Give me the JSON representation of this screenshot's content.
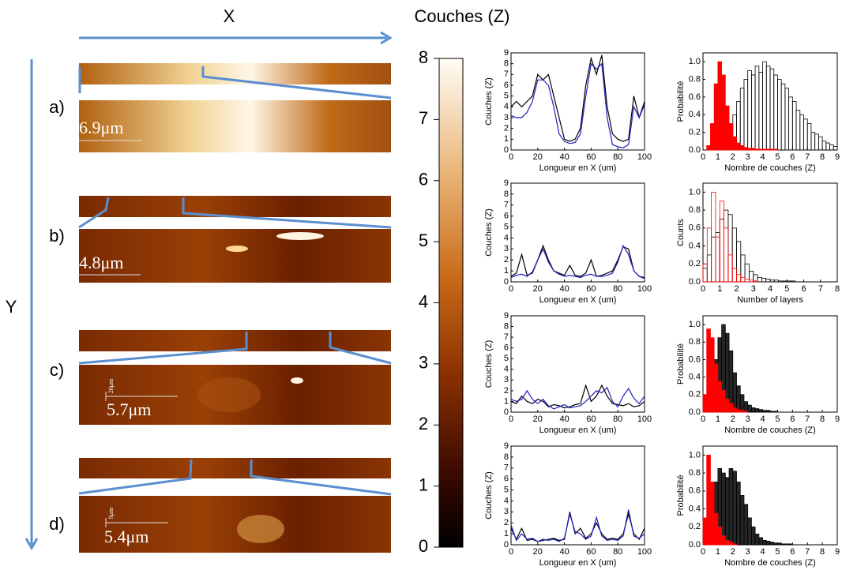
{
  "labels": {
    "x_axis": "X",
    "y_axis": "Y"
  },
  "panels": [
    {
      "label": "a)",
      "scale": "6.9μm"
    },
    {
      "label": "b)",
      "scale": "4.8μm"
    },
    {
      "label": "c)",
      "scale": "5.7μm",
      "scale_small": "20μm"
    },
    {
      "label": "d)",
      "scale": "5.4μm",
      "scale_small": "9μm"
    }
  ],
  "chart_data": [
    {
      "type": "colorbar",
      "title": "Couches (Z)",
      "ylim": [
        0,
        8
      ],
      "yticks": [
        0,
        1,
        2,
        3,
        4,
        5,
        6,
        7,
        8
      ]
    },
    {
      "type": "line",
      "xlabel": "Longueur en X (um)",
      "ylabel": "Couches (Z)",
      "x": [
        0,
        4,
        8,
        12,
        16,
        20,
        24,
        28,
        32,
        36,
        40,
        44,
        48,
        52,
        56,
        60,
        64,
        68,
        72,
        76,
        80,
        84,
        88,
        92,
        96,
        100
      ],
      "series": [
        {
          "color": "#000000",
          "values": [
            4,
            4.5,
            4,
            4.5,
            5,
            7,
            6.5,
            7,
            5,
            3,
            1,
            0.8,
            1,
            2,
            6,
            8.5,
            7,
            8.8,
            4,
            1.5,
            1,
            0.8,
            1,
            5,
            3,
            4.5
          ]
        },
        {
          "color": "#1f1fbf",
          "values": [
            3.2,
            3,
            3,
            3.5,
            4.5,
            6.5,
            6.5,
            6,
            4,
            1.5,
            0.8,
            0.6,
            0.7,
            1.5,
            5,
            8,
            7.5,
            8,
            3,
            0.5,
            0.3,
            0.2,
            0.5,
            4,
            3,
            4.2
          ]
        }
      ],
      "xlim": [
        0,
        100
      ],
      "xticks": [
        0,
        20,
        40,
        60,
        80,
        100
      ],
      "ylim": [
        0,
        9
      ],
      "yticks": [
        0,
        1,
        2,
        3,
        4,
        5,
        6,
        7,
        8,
        9
      ]
    },
    {
      "type": "line",
      "xlabel": "Longueur en X (um)",
      "ylabel": "Couches (Z)",
      "x": [
        0,
        4,
        8,
        12,
        16,
        20,
        24,
        28,
        32,
        36,
        40,
        44,
        48,
        52,
        56,
        60,
        64,
        68,
        72,
        76,
        80,
        84,
        88,
        92,
        96,
        100
      ],
      "series": [
        {
          "color": "#000000",
          "values": [
            0.5,
            0.8,
            2.5,
            0.6,
            0.8,
            2,
            3.3,
            2,
            1,
            0.8,
            0.6,
            1.5,
            0.6,
            0.5,
            0.8,
            2,
            0.5,
            0.6,
            0.8,
            1,
            2,
            3.2,
            3,
            1,
            0.5,
            0.4
          ]
        },
        {
          "color": "#1f1fbf",
          "values": [
            0.4,
            0.6,
            0.7,
            0.5,
            0.9,
            2,
            3,
            1.8,
            1,
            0.7,
            0.5,
            0.6,
            0.5,
            0.4,
            0.6,
            0.7,
            0.5,
            0.5,
            0.6,
            0.8,
            1.8,
            3.3,
            2.5,
            1,
            0.5,
            0.3
          ]
        }
      ],
      "xlim": [
        0,
        100
      ],
      "xticks": [
        0,
        20,
        40,
        60,
        80,
        100
      ],
      "ylim": [
        0,
        9
      ],
      "yticks": [
        0,
        1,
        2,
        3,
        4,
        5,
        6,
        7,
        8,
        9
      ]
    },
    {
      "type": "line",
      "xlabel": "Longueur en X (um)",
      "ylabel": "Couches (Z)",
      "x": [
        0,
        4,
        8,
        12,
        16,
        20,
        24,
        28,
        32,
        36,
        40,
        44,
        48,
        52,
        56,
        60,
        64,
        68,
        72,
        76,
        80,
        84,
        88,
        92,
        96,
        100
      ],
      "series": [
        {
          "color": "#000000",
          "values": [
            1,
            0.8,
            1.5,
            1,
            0.8,
            1.2,
            1,
            0.5,
            0.7,
            0.6,
            0.4,
            0.5,
            0.7,
            0.8,
            2.5,
            1,
            1.5,
            2.5,
            1.5,
            0.8,
            0.7,
            0.6,
            0.8,
            0.5,
            0.6,
            1
          ]
        },
        {
          "color": "#1f1fbf",
          "values": [
            1.2,
            1,
            1.2,
            2,
            1.2,
            0.8,
            1.2,
            0.6,
            0.3,
            0.5,
            0.7,
            0.4,
            0.5,
            0.6,
            1,
            1.5,
            2,
            1.8,
            2.3,
            1,
            0.5,
            1.5,
            2.2,
            1.3,
            0.8,
            1.5
          ]
        }
      ],
      "xlim": [
        0,
        100
      ],
      "xticks": [
        0,
        20,
        40,
        60,
        80,
        100
      ],
      "ylim": [
        0,
        9
      ],
      "yticks": [
        0,
        1,
        2,
        3,
        4,
        5,
        6,
        7,
        8,
        9
      ]
    },
    {
      "type": "line",
      "xlabel": "Longueur en X (um)",
      "ylabel": "Couches (Z)",
      "x": [
        0,
        4,
        8,
        12,
        16,
        20,
        24,
        28,
        32,
        36,
        40,
        44,
        48,
        52,
        56,
        60,
        64,
        68,
        72,
        76,
        80,
        84,
        88,
        92,
        96,
        100
      ],
      "series": [
        {
          "color": "#000000",
          "values": [
            1.5,
            0.5,
            1.5,
            0.4,
            0.5,
            0.3,
            0.4,
            0.5,
            0.6,
            0.4,
            0.5,
            3,
            1,
            1.5,
            0.6,
            1,
            2,
            1,
            0.5,
            0.6,
            0.5,
            1,
            2.8,
            1,
            0.5,
            1.5
          ]
        },
        {
          "color": "#1f1fbf",
          "values": [
            1.8,
            0.4,
            1,
            0.5,
            0.6,
            0.3,
            0.5,
            0.4,
            0.5,
            0.3,
            0.6,
            2.8,
            1.2,
            1,
            0.5,
            0.8,
            2.5,
            0.8,
            0.4,
            0.5,
            0.4,
            0.8,
            3.2,
            0.8,
            0.6,
            1
          ]
        }
      ],
      "xlim": [
        0,
        100
      ],
      "xticks": [
        0,
        20,
        40,
        60,
        80,
        100
      ],
      "ylim": [
        0,
        9
      ],
      "yticks": [
        0,
        1,
        2,
        3,
        4,
        5,
        6,
        7,
        8,
        9
      ]
    },
    {
      "type": "histogram",
      "xlabel": "Nombre de couches (Z)",
      "ylabel": "Probabilité",
      "bins": [
        0,
        0.25,
        0.5,
        0.75,
        1,
        1.25,
        1.5,
        1.75,
        2,
        2.25,
        2.5,
        2.75,
        3,
        3.25,
        3.5,
        3.75,
        4,
        4.25,
        4.5,
        4.75,
        5,
        5.25,
        5.5,
        5.75,
        6,
        6.25,
        6.5,
        6.75,
        7,
        7.25,
        7.5,
        7.75,
        8,
        8.25,
        8.5,
        8.75,
        9
      ],
      "series": [
        {
          "color": "#000000",
          "filled": false,
          "values": [
            0,
            0,
            0.02,
            0.03,
            0.05,
            0.1,
            0.15,
            0.25,
            0.4,
            0.55,
            0.7,
            0.8,
            0.9,
            0.85,
            0.95,
            0.88,
            1.0,
            0.95,
            0.92,
            0.85,
            0.8,
            0.75,
            0.7,
            0.6,
            0.55,
            0.45,
            0.4,
            0.35,
            0.3,
            0.2,
            0.18,
            0.15,
            0.1,
            0.08,
            0.06,
            0.04
          ]
        },
        {
          "color": "#ff0000",
          "filled": true,
          "values": [
            0,
            0.05,
            0.3,
            0.75,
            1.0,
            0.85,
            0.5,
            0.3,
            0.15,
            0.08,
            0.05,
            0.03,
            0.02,
            0.02,
            0.01,
            0.01,
            0.01,
            0.01,
            0.01,
            0.01,
            0,
            0,
            0,
            0,
            0,
            0,
            0,
            0,
            0,
            0,
            0,
            0,
            0,
            0,
            0,
            0
          ]
        }
      ],
      "xlim": [
        0,
        9
      ],
      "xticks": [
        0,
        1,
        2,
        3,
        4,
        5,
        6,
        7,
        8,
        9
      ],
      "ylim": [
        0,
        1.1
      ],
      "yticks": [
        {
          "value": 0,
          "label": "0.0"
        },
        {
          "value": 0.2,
          "label": "0.2"
        },
        {
          "value": 0.4,
          "label": "0.4"
        },
        {
          "value": 0.6,
          "label": "0.6"
        },
        {
          "value": 0.8,
          "label": "0.8"
        },
        {
          "value": 1,
          "label": "1.0"
        }
      ]
    },
    {
      "type": "histogram",
      "xlabel": "Number of layers",
      "ylabel": "Counts",
      "bins": [
        0,
        0.25,
        0.5,
        0.75,
        1,
        1.25,
        1.5,
        1.75,
        2,
        2.25,
        2.5,
        2.75,
        3,
        3.25,
        3.5,
        3.75,
        4,
        4.25,
        4.5,
        4.75,
        5,
        5.25,
        5.5,
        5.75,
        6,
        6.25,
        6.5,
        6.75,
        7,
        7.25,
        7.5,
        7.75,
        8
      ],
      "series": [
        {
          "color": "#000000",
          "filled": false,
          "values": [
            0.15,
            0.3,
            0.5,
            0.55,
            0.7,
            0.8,
            0.75,
            0.6,
            0.45,
            0.3,
            0.2,
            0.12,
            0.08,
            0.05,
            0.04,
            0.03,
            0.02,
            0.02,
            0.01,
            0.01,
            0.01,
            0.01,
            0,
            0,
            0,
            0,
            0,
            0,
            0,
            0,
            0,
            0
          ]
        },
        {
          "color": "#ff0000",
          "filled": false,
          "values": [
            0.2,
            0.6,
            1.0,
            0.5,
            0.9,
            0.6,
            0.3,
            0.15,
            0.08,
            0.05,
            0.03,
            0.02,
            0.01,
            0,
            0,
            0,
            0,
            0,
            0,
            0,
            0,
            0,
            0,
            0,
            0,
            0,
            0,
            0,
            0,
            0,
            0,
            0
          ]
        }
      ],
      "xlim": [
        0,
        8
      ],
      "xticks": [
        0,
        1,
        2,
        3,
        4,
        5,
        6,
        7,
        8
      ],
      "ylim": [
        0,
        1.1
      ],
      "yticks": [
        {
          "value": 0,
          "label": "0.0"
        },
        {
          "value": 0.2,
          "label": "0.2"
        },
        {
          "value": 0.4,
          "label": "0.4"
        },
        {
          "value": 0.6,
          "label": "0.6"
        },
        {
          "value": 0.8,
          "label": "0.8"
        },
        {
          "value": 1,
          "label": "1.0"
        }
      ]
    },
    {
      "type": "histogram",
      "xlabel": "Nombre de couches (Z)",
      "ylabel": "Probabilité",
      "bins": [
        0,
        0.25,
        0.5,
        0.75,
        1,
        1.25,
        1.5,
        1.75,
        2,
        2.25,
        2.5,
        2.75,
        3,
        3.25,
        3.5,
        3.75,
        4,
        4.25,
        4.5,
        4.75,
        5,
        5.25,
        5.5,
        5.75,
        6,
        6.25,
        6.5,
        6.75,
        7,
        7.25,
        7.5,
        7.75,
        8,
        8.25,
        8.5,
        8.75,
        9
      ],
      "series": [
        {
          "color": "#000000",
          "filled": true,
          "values": [
            0,
            0.1,
            0.35,
            0.6,
            0.85,
            1.0,
            0.9,
            0.7,
            0.45,
            0.3,
            0.2,
            0.12,
            0.08,
            0.05,
            0.04,
            0.03,
            0.02,
            0.02,
            0.01,
            0.01,
            0,
            0,
            0,
            0,
            0,
            0,
            0,
            0,
            0,
            0,
            0,
            0,
            0,
            0,
            0,
            0
          ]
        },
        {
          "color": "#ff0000",
          "filled": true,
          "values": [
            0.2,
            0.95,
            0.85,
            0.55,
            0.35,
            0.25,
            0.15,
            0.1,
            0.05,
            0.03,
            0.02,
            0.01,
            0,
            0,
            0,
            0,
            0,
            0,
            0,
            0,
            0,
            0,
            0,
            0,
            0,
            0,
            0,
            0,
            0,
            0,
            0,
            0,
            0,
            0,
            0,
            0
          ]
        }
      ],
      "xlim": [
        0,
        9
      ],
      "xticks": [
        0,
        1,
        2,
        3,
        4,
        5,
        6,
        7,
        8,
        9
      ],
      "ylim": [
        0,
        1.1
      ],
      "yticks": [
        {
          "value": 0,
          "label": "0.0"
        },
        {
          "value": 0.2,
          "label": "0.2"
        },
        {
          "value": 0.4,
          "label": "0.4"
        },
        {
          "value": 0.6,
          "label": "0.6"
        },
        {
          "value": 0.8,
          "label": "0.8"
        },
        {
          "value": 1,
          "label": "1.0"
        }
      ]
    },
    {
      "type": "histogram",
      "xlabel": "Nombre de couches (Z)",
      "ylabel": "Probabilité",
      "bins": [
        0,
        0.25,
        0.5,
        0.75,
        1,
        1.25,
        1.5,
        1.75,
        2,
        2.25,
        2.5,
        2.75,
        3,
        3.25,
        3.5,
        3.75,
        4,
        4.25,
        4.5,
        4.75,
        5,
        5.25,
        5.5,
        5.75,
        6,
        6.25,
        6.5,
        6.75,
        7,
        7.25,
        7.5,
        7.75,
        8,
        8.25,
        8.5,
        8.75,
        9
      ],
      "series": [
        {
          "color": "#000000",
          "filled": true,
          "values": [
            0.05,
            0.2,
            0.45,
            0.7,
            0.85,
            0.8,
            0.75,
            0.85,
            0.82,
            0.7,
            0.55,
            0.45,
            0.3,
            0.2,
            0.12,
            0.08,
            0.05,
            0.04,
            0.03,
            0.02,
            0.02,
            0.01,
            0.01,
            0.01,
            0,
            0,
            0,
            0,
            0,
            0,
            0,
            0,
            0,
            0,
            0,
            0
          ]
        },
        {
          "color": "#ff0000",
          "filled": true,
          "values": [
            0.3,
            1.0,
            0.7,
            0.35,
            0.2,
            0.1,
            0.05,
            0.03,
            0.01,
            0,
            0,
            0,
            0,
            0,
            0,
            0,
            0,
            0,
            0,
            0,
            0,
            0,
            0,
            0,
            0,
            0,
            0,
            0,
            0,
            0,
            0,
            0,
            0,
            0,
            0,
            0
          ]
        }
      ],
      "xlim": [
        0,
        9
      ],
      "xticks": [
        0,
        1,
        2,
        3,
        4,
        5,
        6,
        7,
        8,
        9
      ],
      "ylim": [
        0,
        1.1
      ],
      "yticks": [
        {
          "value": 0,
          "label": "0.0"
        },
        {
          "value": 0.2,
          "label": "0.2"
        },
        {
          "value": 0.4,
          "label": "0.4"
        },
        {
          "value": 0.6,
          "label": "0.6"
        },
        {
          "value": 0.8,
          "label": "0.8"
        },
        {
          "value": 1,
          "label": "1.0"
        }
      ]
    }
  ]
}
